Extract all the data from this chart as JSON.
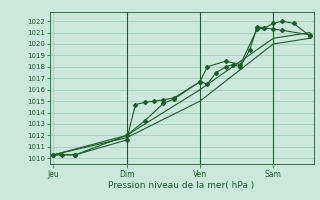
{
  "background_color": "#cce8dc",
  "grid_color": "#99ccb3",
  "line_color": "#1a5c2a",
  "xlabel": "Pression niveau de la mer( hPa )",
  "ylim": [
    1009.5,
    1022.8
  ],
  "day_labels": [
    "Jeu",
    "Dim",
    "Ven",
    "Sam"
  ],
  "day_positions": [
    0.0,
    1.0,
    2.0,
    3.0
  ],
  "xlim": [
    -0.05,
    3.55
  ],
  "yticks": [
    1010,
    1011,
    1012,
    1013,
    1014,
    1015,
    1016,
    1017,
    1018,
    1019,
    1020,
    1021,
    1022
  ],
  "series1_x": [
    0.0,
    0.12,
    0.3,
    1.0,
    1.12,
    1.25,
    1.38,
    1.5,
    1.65,
    2.0,
    2.1,
    2.22,
    2.35,
    2.45,
    2.55,
    2.68,
    2.78,
    2.88,
    3.0,
    3.12,
    3.28,
    3.5
  ],
  "series1_y": [
    1010.3,
    1010.3,
    1010.3,
    1011.6,
    1014.7,
    1014.9,
    1015.0,
    1015.1,
    1015.3,
    1016.7,
    1016.5,
    1017.5,
    1018.0,
    1018.2,
    1018.0,
    1019.5,
    1021.5,
    1021.4,
    1021.8,
    1022.0,
    1021.8,
    1020.7
  ],
  "series2_x": [
    0.0,
    0.3,
    1.0,
    1.25,
    1.5,
    1.65,
    2.0,
    2.1,
    2.35,
    2.55,
    2.78,
    2.88,
    3.0,
    3.12,
    3.5
  ],
  "series2_y": [
    1010.3,
    1010.3,
    1012.0,
    1013.3,
    1014.8,
    1015.2,
    1016.7,
    1018.0,
    1018.5,
    1018.2,
    1021.3,
    1021.4,
    1021.3,
    1021.2,
    1020.8
  ],
  "series3_x": [
    0.0,
    1.0,
    2.0,
    3.0,
    3.5
  ],
  "series3_y": [
    1010.3,
    1012.0,
    1016.0,
    1020.5,
    1021.0
  ],
  "series4_x": [
    0.0,
    1.0,
    2.0,
    3.0,
    3.5
  ],
  "series4_y": [
    1010.3,
    1011.8,
    1015.0,
    1020.0,
    1020.5
  ],
  "vline_positions": [
    1.0,
    2.0,
    3.0
  ]
}
